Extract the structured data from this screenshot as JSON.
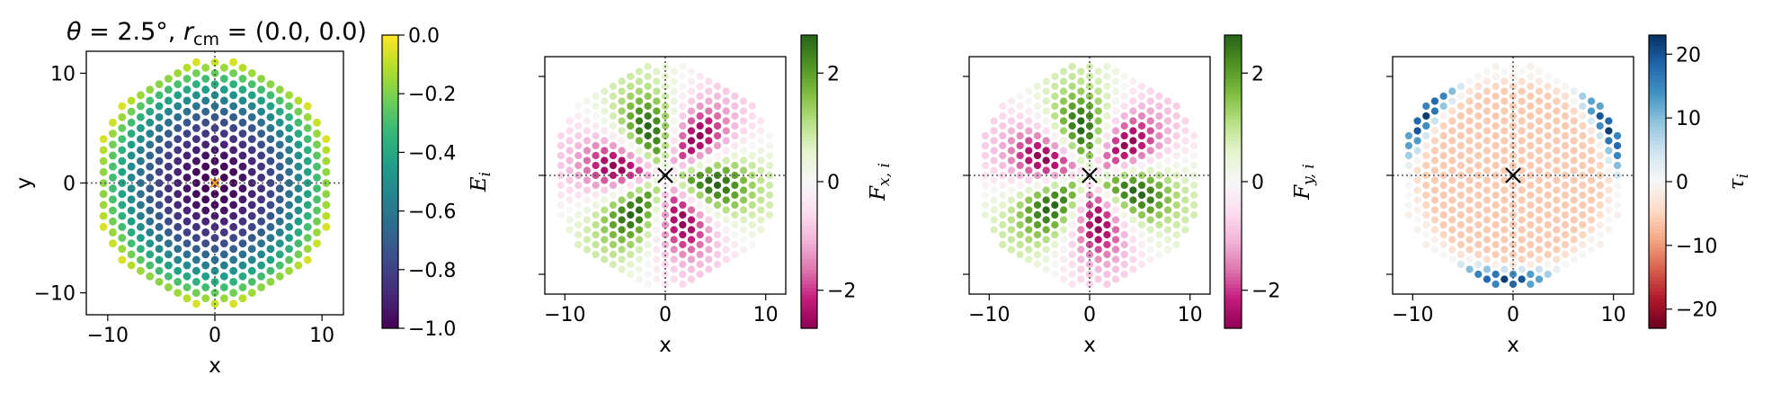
{
  "title": "θ = 2.5°, r_cm = (0.0, 0.0)",
  "title_parts": {
    "theta": "θ",
    "theta_value": " = 2.5°, ",
    "r": "r",
    "r_sub": "cm",
    "r_value": " = (0.0, 0.0)"
  },
  "chart_data": [
    {
      "type": "scatter",
      "panel": "energy",
      "xlabel": "x",
      "ylabel": "y",
      "xlim": [
        -12,
        12
      ],
      "ylim": [
        -12,
        12
      ],
      "xticks": [
        -10,
        0,
        10
      ],
      "yticks": [
        -10,
        0,
        10
      ],
      "xtick_labels": [
        "−10",
        "0",
        "10"
      ],
      "ytick_labels": [
        "−10",
        "0",
        "10"
      ],
      "grid": false,
      "reference_lines": "dotted lines at x = 0 and y = 0",
      "center_marker": "×",
      "center_marker_color": "#f4a621",
      "lattice": "triangular, spacing 1.0, 30° rotation, disc radius 11.2",
      "field": "Ei = -1 + 0.9*(r/11)^2",
      "colorbar": {
        "label": "E_i",
        "label_main": "E",
        "label_sub": "i",
        "colormap": "viridis",
        "min": -1.0,
        "max": 0.0,
        "ticks": [
          0.0,
          -0.2,
          -0.4,
          -0.6,
          -0.8,
          -1.0
        ],
        "tick_labels": [
          "0.0",
          "−0.2",
          "−0.4",
          "−0.6",
          "−0.8",
          "−1.0"
        ]
      }
    },
    {
      "type": "scatter",
      "panel": "force-x",
      "xlabel": "x",
      "xlim": [
        -12,
        12
      ],
      "ylim": [
        -12,
        12
      ],
      "xticks": [
        -10,
        0,
        10
      ],
      "xtick_labels": [
        "−10",
        "0",
        "10"
      ],
      "grid": false,
      "reference_lines": "dotted lines at x = 0 and y = 0",
      "center_marker": "×",
      "center_marker_color": "#000000",
      "lattice": "triangular, spacing 1.0, 30° rotation, disc radius 11.2",
      "field": "Fx,i = 2.7*sin(3*phi + 2.1) bumped, decaying at rim",
      "colorbar": {
        "label": "F_x,i",
        "label_main": "F",
        "label_sub": "x, i",
        "colormap": "PiYG",
        "min": -2.7,
        "max": 2.7,
        "ticks": [
          2,
          0,
          -2
        ],
        "tick_labels": [
          "2",
          "0",
          "−2"
        ]
      }
    },
    {
      "type": "scatter",
      "panel": "force-y",
      "xlabel": "x",
      "xlim": [
        -12,
        12
      ],
      "ylim": [
        -12,
        12
      ],
      "xticks": [
        -10,
        0,
        10
      ],
      "xtick_labels": [
        "−10",
        "0",
        "10"
      ],
      "grid": false,
      "reference_lines": "dotted lines at x = 0 and y = 0",
      "center_marker": "×",
      "center_marker_color": "#000000",
      "lattice": "triangular, spacing 1.0, 30° rotation, disc radius 11.2",
      "field": "Fy,i = -2.7*sin(phi - 0.5) bumped",
      "colorbar": {
        "label": "F_y,i",
        "label_main": "F",
        "label_sub": "y, i",
        "colormap": "PiYG",
        "min": -2.7,
        "max": 2.7,
        "ticks": [
          2,
          0,
          -2
        ],
        "tick_labels": [
          "2",
          "0",
          "−2"
        ]
      }
    },
    {
      "type": "scatter",
      "panel": "torque",
      "xlabel": "x",
      "xlim": [
        -12,
        12
      ],
      "ylim": [
        -12,
        12
      ],
      "xticks": [
        -10,
        0,
        10
      ],
      "xtick_labels": [
        "−10",
        "0",
        "10"
      ],
      "grid": false,
      "reference_lines": "dotted lines at x = 0 and y = 0",
      "center_marker": "×",
      "center_marker_color": "#000000",
      "lattice": "triangular, spacing 1.0, 30° rotation, disc radius 11.2",
      "field": "tau_i negative (~-6) inside, positive lobes near rim",
      "colorbar": {
        "label": "τ_i",
        "label_main": "τ",
        "label_sub": "i",
        "colormap": "RdBu",
        "min": -23,
        "max": 23,
        "ticks": [
          20,
          10,
          0,
          -10,
          -20
        ],
        "tick_labels": [
          "20",
          "10",
          "0",
          "−10",
          "−20"
        ]
      }
    }
  ]
}
